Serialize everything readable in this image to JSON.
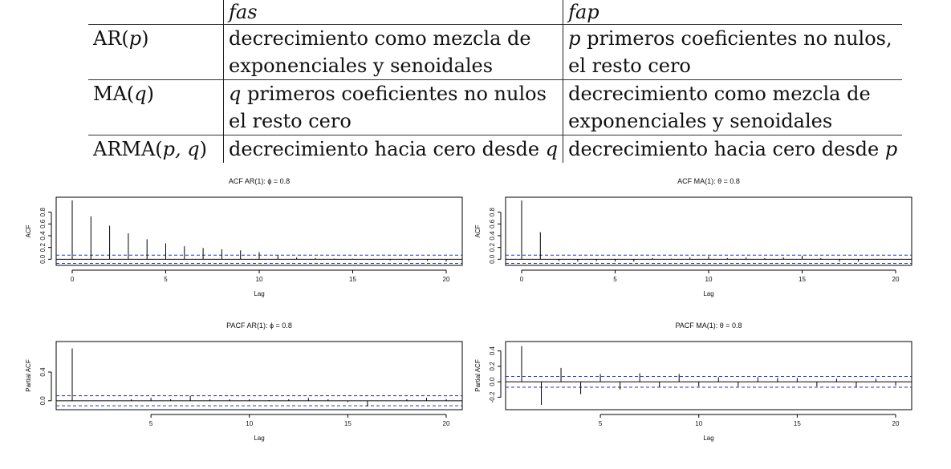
{
  "table": {
    "headers": [
      "",
      "fas",
      "fap"
    ],
    "rows": [
      {
        "model": "AR(p)",
        "model_name": "AR",
        "model_args": "p",
        "fas_lines": [
          "decrecimiento como mezcla de",
          "exponenciales y senoidales"
        ],
        "fap_lines": [
          "p primeros coeficientes no nulos,",
          "el resto cero"
        ]
      },
      {
        "model": "MA(q)",
        "model_name": "MA",
        "model_args": "q",
        "fas_lines": [
          "q primeros coeficientes no nulos",
          "el resto cero"
        ],
        "fap_lines": [
          "decrecimiento como mezcla de",
          "exponenciales y senoidales"
        ]
      },
      {
        "model": "ARMA(p, q)",
        "model_name": "ARMA",
        "model_args": "p, q",
        "fas_lines": [
          "decrecimiento hacia cero desde q"
        ],
        "fap_lines": [
          "decrecimiento hacia cero desde p"
        ]
      }
    ]
  },
  "chart_data": [
    {
      "type": "bar",
      "title": "ACF AR(1): ϕ = 0.8",
      "xlabel": "Lag",
      "ylabel": "ACF",
      "xlim": [
        0,
        20
      ],
      "ylim": [
        -0.05,
        1.0
      ],
      "xticks": [
        0,
        5,
        10,
        15,
        20
      ],
      "yticks": [
        0.0,
        0.2,
        0.4,
        0.6,
        0.8
      ],
      "conf_band": 0.07,
      "series_color": "#000000",
      "band_color": "#1f2fd1",
      "x": [
        0,
        1,
        2,
        3,
        4,
        5,
        6,
        7,
        8,
        9,
        10,
        11,
        12,
        13,
        14,
        15,
        16,
        17,
        18,
        19,
        20
      ],
      "values": [
        1.0,
        0.73,
        0.57,
        0.44,
        0.34,
        0.27,
        0.22,
        0.19,
        0.17,
        0.15,
        0.12,
        0.07,
        0.03,
        0.02,
        0.01,
        0.01,
        -0.01,
        -0.02,
        -0.03,
        -0.03,
        -0.04
      ]
    },
    {
      "type": "bar",
      "title": "ACF MA(1): θ = 0.8",
      "xlabel": "Lag",
      "ylabel": "ACF",
      "xlim": [
        0,
        20
      ],
      "ylim": [
        -0.05,
        1.0
      ],
      "xticks": [
        0,
        5,
        10,
        15,
        20
      ],
      "yticks": [
        0.0,
        0.2,
        0.4,
        0.6,
        0.8
      ],
      "conf_band": 0.07,
      "series_color": "#000000",
      "band_color": "#1f2fd1",
      "x": [
        0,
        1,
        2,
        3,
        4,
        5,
        6,
        7,
        8,
        9,
        10,
        11,
        12,
        13,
        14,
        15,
        16,
        17,
        18,
        19,
        20
      ],
      "values": [
        1.0,
        0.46,
        -0.03,
        -0.04,
        -0.03,
        -0.04,
        -0.04,
        0.02,
        0.01,
        0.03,
        0.05,
        0.02,
        0.03,
        0.02,
        0.03,
        0.06,
        0.02,
        -0.04,
        -0.04,
        -0.01,
        -0.01
      ]
    },
    {
      "type": "bar",
      "title": "PACF AR(1): ϕ = 0.8",
      "xlabel": "Lag",
      "ylabel": "Partial ACF",
      "xlim": [
        1,
        20
      ],
      "ylim": [
        -0.08,
        0.78
      ],
      "xticks": [
        5,
        10,
        15,
        20
      ],
      "yticks": [
        0.0,
        0.4
      ],
      "conf_band": 0.07,
      "series_color": "#000000",
      "band_color": "#1f2fd1",
      "x": [
        1,
        2,
        3,
        4,
        5,
        6,
        7,
        8,
        9,
        10,
        11,
        12,
        13,
        14,
        15,
        16,
        17,
        18,
        19,
        20
      ],
      "values": [
        0.73,
        0.0,
        0.0,
        0.02,
        0.04,
        0.02,
        0.07,
        0.02,
        0.02,
        0.02,
        0.01,
        0.02,
        0.04,
        0.02,
        -0.02,
        -0.08,
        0.0,
        0.02,
        0.04,
        0.02
      ]
    },
    {
      "type": "bar",
      "title": "PACF MA(1): θ = 0.8",
      "xlabel": "Lag",
      "ylabel": "Partial ACF",
      "xlim": [
        1,
        20
      ],
      "ylim": [
        -0.32,
        0.48
      ],
      "xticks": [
        5,
        10,
        15,
        20
      ],
      "yticks": [
        -0.2,
        0.0,
        0.2,
        0.4
      ],
      "conf_band": 0.07,
      "series_color": "#000000",
      "band_color": "#1f2fd1",
      "x": [
        1,
        2,
        3,
        4,
        5,
        6,
        7,
        8,
        9,
        10,
        11,
        12,
        13,
        14,
        15,
        16,
        17,
        18,
        19,
        20
      ],
      "values": [
        0.46,
        -0.3,
        0.18,
        -0.16,
        0.1,
        -0.1,
        0.11,
        -0.07,
        0.1,
        -0.06,
        0.06,
        -0.06,
        0.06,
        0.05,
        0.05,
        -0.06,
        0.04,
        -0.07,
        0.04,
        -0.05
      ]
    }
  ]
}
